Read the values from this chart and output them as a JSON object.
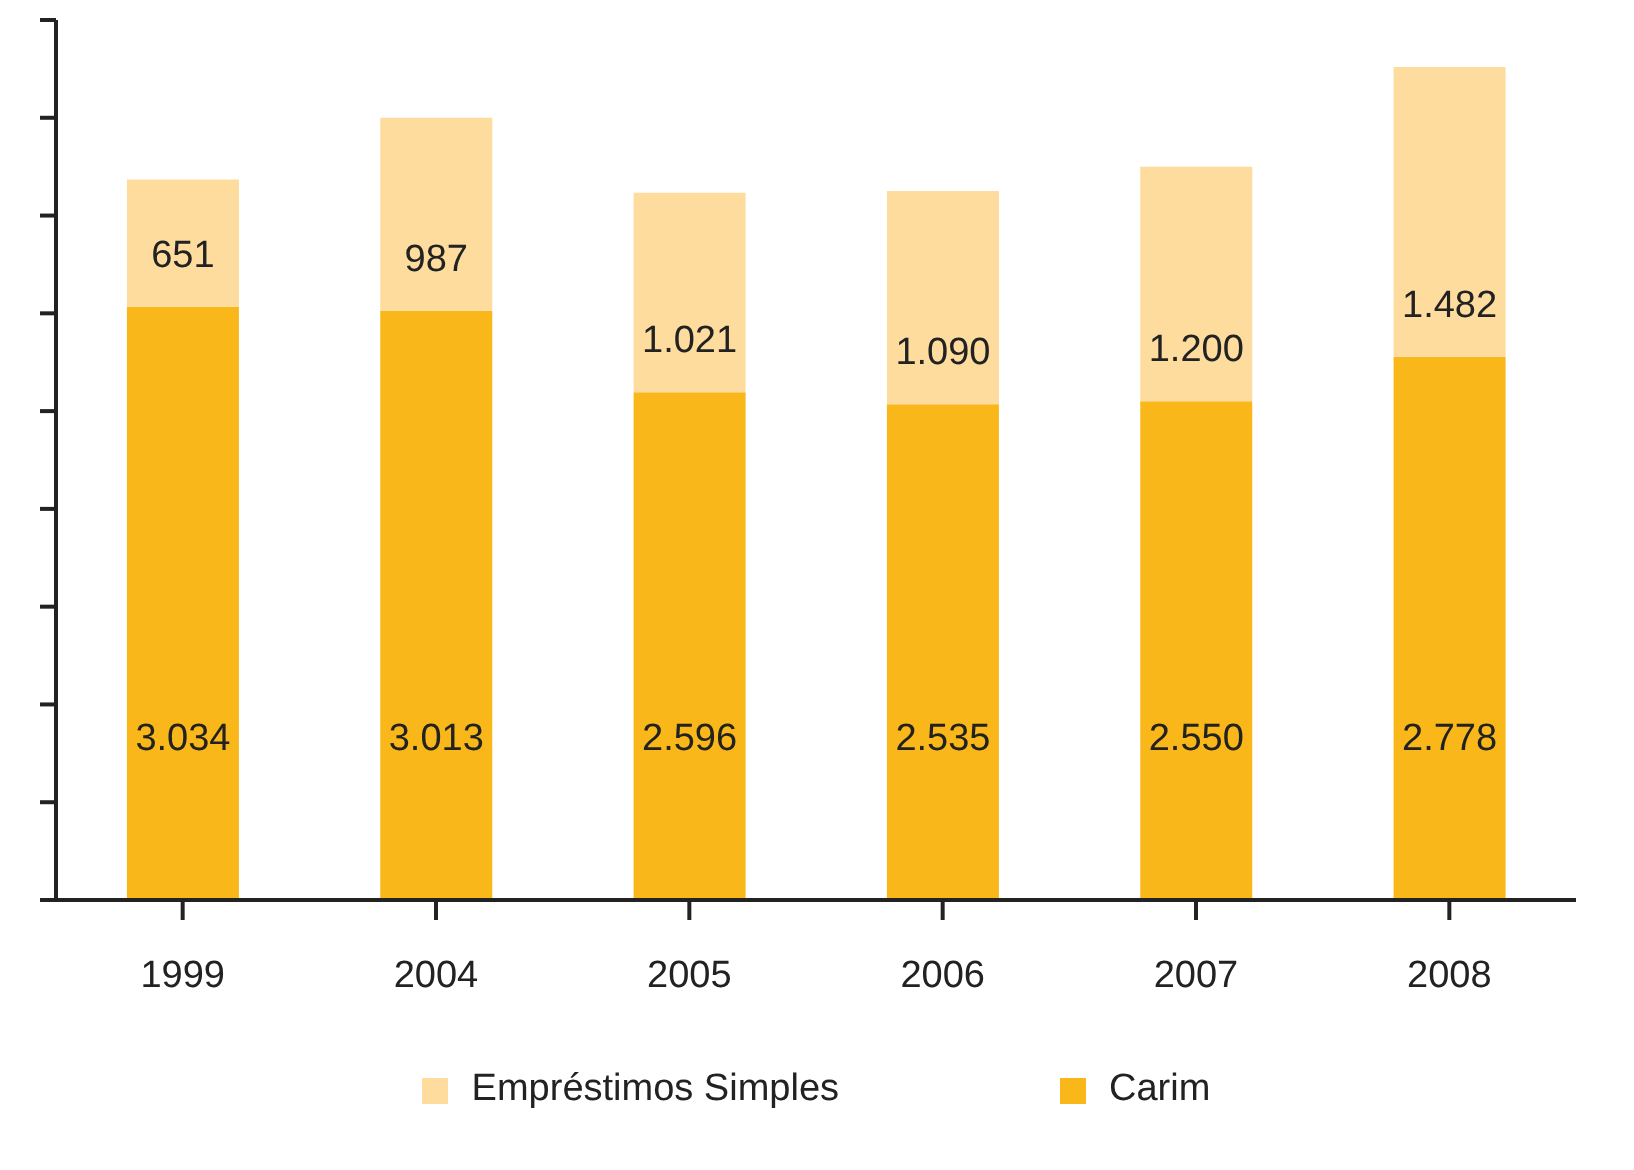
{
  "chart_data": {
    "type": "bar",
    "stacked": true,
    "categories": [
      "1999",
      "2004",
      "2005",
      "2006",
      "2007",
      "2008"
    ],
    "series": [
      {
        "name": "Carim",
        "color": "#f9b71a",
        "values": [
          3034,
          3013,
          2596,
          2535,
          2550,
          2778
        ],
        "value_labels": [
          "3.034",
          "3.013",
          "2.596",
          "2.535",
          "2.550",
          "2.778"
        ]
      },
      {
        "name": "Empréstimos Simples",
        "color": "#fddc9e",
        "values": [
          651,
          987,
          1021,
          1090,
          1200,
          1482
        ],
        "value_labels": [
          "651",
          "987",
          "1.021",
          "1.090",
          "1.200",
          "1.482"
        ]
      }
    ],
    "ylim": [
      0,
      4500
    ],
    "yticks": [
      0,
      {
        "value": 500,
        "label": null
      },
      {
        "value": 1000,
        "label": null
      },
      {
        "value": 1500,
        "label": null
      },
      {
        "value": 2000,
        "label": null
      },
      {
        "value": 2500,
        "label": null
      },
      {
        "value": 3000,
        "label": null
      },
      {
        "value": 3500,
        "label": null
      },
      {
        "value": 4000,
        "label": null
      },
      {
        "value": 4500,
        "label": null
      }
    ],
    "tick_labels": "x",
    "legend": "bottom"
  }
}
